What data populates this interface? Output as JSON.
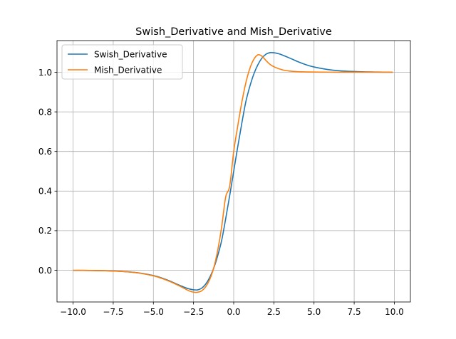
{
  "chart_data": {
    "type": "line",
    "title": "Swish_Derivative and Mish_Derivative",
    "xlabel": "",
    "ylabel": "",
    "xlim": [
      -11.0,
      11.0
    ],
    "ylim": [
      -0.16,
      1.16
    ],
    "grid": true,
    "legend_position": "top-left",
    "x_ticks": [
      -10.0,
      -7.5,
      -5.0,
      -2.5,
      0.0,
      2.5,
      5.0,
      7.5,
      10.0
    ],
    "x_tick_labels": [
      "−10.0",
      "−7.5",
      "−5.0",
      "−2.5",
      "0.0",
      "2.5",
      "5.0",
      "7.5",
      "10.0"
    ],
    "y_ticks": [
      0.0,
      0.2,
      0.4,
      0.6,
      0.8,
      1.0
    ],
    "y_tick_labels": [
      "0.0",
      "0.2",
      "0.4",
      "0.6",
      "0.8",
      "1.0"
    ],
    "series": [
      {
        "name": "Swish_Derivative",
        "color": "#1f77b4",
        "x": [
          -10,
          -9,
          -8,
          -7,
          -6,
          -5,
          -4.5,
          -4,
          -3.5,
          -3,
          -2.75,
          -2.5,
          -2.4,
          -2.25,
          -2,
          -1.75,
          -1.5,
          -1.25,
          -1,
          -0.75,
          -0.5,
          -0.25,
          0,
          0.25,
          0.5,
          0.75,
          1,
          1.25,
          1.5,
          1.75,
          2,
          2.25,
          2.4,
          2.5,
          2.75,
          3,
          3.5,
          4,
          4.5,
          5,
          6,
          7,
          8,
          9,
          9.9
        ],
        "y": [
          -0.0004,
          -0.001,
          -0.0023,
          -0.0054,
          -0.0123,
          -0.0266,
          -0.0383,
          -0.0535,
          -0.0712,
          -0.0881,
          -0.0945,
          -0.0985,
          -0.0991,
          -0.099,
          -0.0908,
          -0.0707,
          -0.0373,
          0.0094,
          0.0723,
          0.1508,
          0.26,
          0.3768,
          0.5,
          0.6232,
          0.74,
          0.8492,
          0.9277,
          0.9906,
          1.0373,
          1.0707,
          1.0908,
          1.099,
          1.0991,
          1.0985,
          1.0945,
          1.0881,
          1.0712,
          1.0535,
          1.0383,
          1.0266,
          1.0123,
          1.0054,
          1.0023,
          1.001,
          1.0004
        ]
      },
      {
        "name": "Mish_Derivative",
        "color": "#ff7f0e",
        "x": [
          -10,
          -9,
          -8,
          -7,
          -6,
          -5,
          -4.5,
          -4,
          -3.5,
          -3,
          -2.75,
          -2.5,
          -2.25,
          -2,
          -1.75,
          -1.5,
          -1.25,
          -1,
          -0.75,
          -0.5,
          -0.25,
          0,
          0.25,
          0.5,
          0.75,
          1,
          1.25,
          1.5,
          1.75,
          2,
          2.25,
          2.5,
          3,
          3.5,
          4,
          5,
          6,
          7,
          8,
          9,
          9.9
        ],
        "y": [
          -0.0004,
          -0.001,
          -0.0025,
          -0.0057,
          -0.013,
          -0.028,
          -0.0403,
          -0.0557,
          -0.0742,
          -0.095,
          -0.1047,
          -0.1105,
          -0.1108,
          -0.104,
          -0.084,
          -0.048,
          0.01,
          0.099,
          0.219,
          0.37,
          0.425,
          0.6,
          0.728,
          0.846,
          0.945,
          1.018,
          1.065,
          1.088,
          1.082,
          1.06,
          1.041,
          1.028,
          1.013,
          1.006,
          1.003,
          1.001,
          1.0004,
          1.0001,
          1.0,
          1.0,
          1.0
        ]
      }
    ]
  }
}
